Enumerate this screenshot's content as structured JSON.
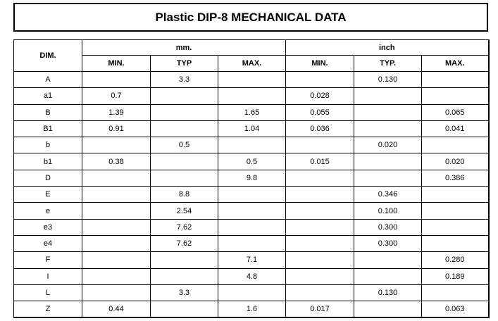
{
  "title": "Plastic DIP-8 MECHANICAL DATA",
  "header": {
    "dim": "DIM.",
    "mm": "mm.",
    "inch": "inch",
    "sub": [
      "MIN.",
      "TYP",
      "MAX.",
      "MIN.",
      "TYP.",
      "MAX."
    ]
  },
  "rows": [
    [
      "A",
      "",
      "3.3",
      "",
      "",
      "0.130",
      ""
    ],
    [
      "a1",
      "0.7",
      "",
      "",
      "0.028",
      "",
      ""
    ],
    [
      "B",
      "1.39",
      "",
      "1.65",
      "0.055",
      "",
      "0.065"
    ],
    [
      "B1",
      "0.91",
      "",
      "1.04",
      "0.036",
      "",
      "0.041"
    ],
    [
      "b",
      "",
      "0.5",
      "",
      "",
      "0.020",
      ""
    ],
    [
      "b1",
      "0.38",
      "",
      "0.5",
      "0.015",
      "",
      "0.020"
    ],
    [
      "D",
      "",
      "",
      "9.8",
      "",
      "",
      "0.386"
    ],
    [
      "E",
      "",
      "8.8",
      "",
      "",
      "0.346",
      ""
    ],
    [
      "e",
      "",
      "2.54",
      "",
      "",
      "0.100",
      ""
    ],
    [
      "e3",
      "",
      "7.62",
      "",
      "",
      "0.300",
      ""
    ],
    [
      "e4",
      "",
      "7.62",
      "",
      "",
      "0.300",
      ""
    ],
    [
      "F",
      "",
      "",
      "7.1",
      "",
      "",
      "0.280"
    ],
    [
      "I",
      "",
      "",
      "4.8",
      "",
      "",
      "0.189"
    ],
    [
      "L",
      "",
      "3.3",
      "",
      "",
      "0.130",
      ""
    ],
    [
      "Z",
      "0.44",
      "",
      "1.6",
      "0.017",
      "",
      "0.063"
    ]
  ]
}
